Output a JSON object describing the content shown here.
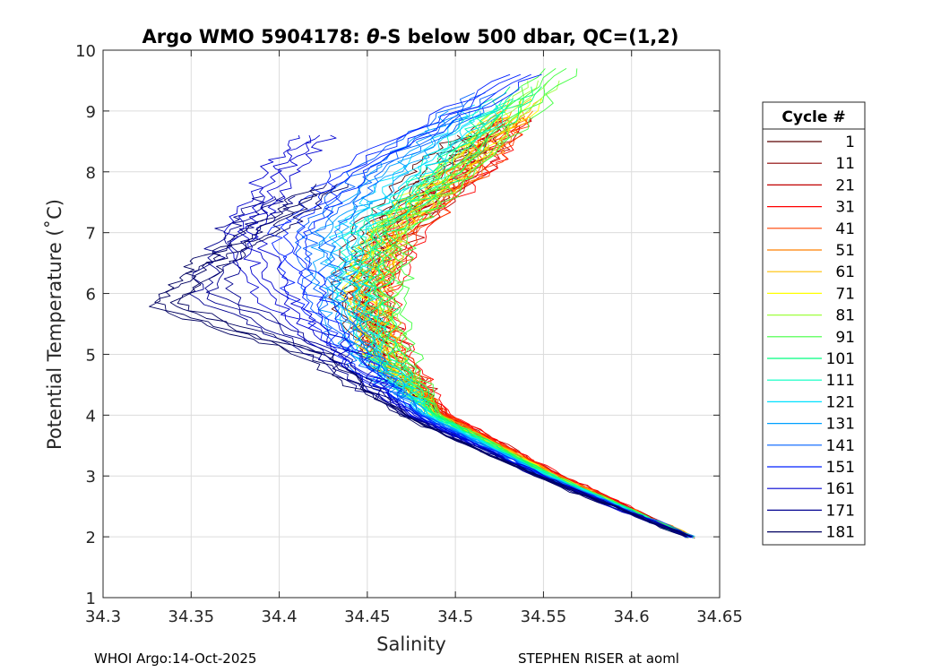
{
  "chart_data": {
    "type": "line",
    "title_prefix": "Argo WMO 5904178: ",
    "title_symbol": "θ",
    "title_suffix": "-S below 500 dbar,  QC=(1,2)",
    "xlabel": "Salinity",
    "ylabel": "Potential Temperature (˚C)",
    "xlim": [
      34.3,
      34.65
    ],
    "ylim": [
      1,
      10
    ],
    "xticks": [
      "34.3",
      "34.35",
      "34.4",
      "34.45",
      "34.5",
      "34.55",
      "34.6",
      "34.65"
    ],
    "yticks": [
      "1",
      "2",
      "3",
      "4",
      "5",
      "6",
      "7",
      "8",
      "9",
      "10"
    ],
    "grid": true,
    "legend_title": "Cycle #",
    "legend_position": "outside-right",
    "series": [
      {
        "name": "1",
        "color": "#5a0000",
        "theta": [
          2.0,
          3.0,
          4.0,
          5.0,
          6.0,
          7.0,
          8.0,
          8.6
        ],
        "salinity": [
          34.633,
          34.555,
          34.49,
          34.455,
          34.44,
          34.45,
          34.485,
          34.51
        ]
      },
      {
        "name": "11",
        "color": "#8b0000",
        "theta": [
          2.0,
          3.0,
          4.0,
          5.0,
          6.0,
          7.0,
          8.0,
          8.8
        ],
        "salinity": [
          34.633,
          34.557,
          34.492,
          34.458,
          34.448,
          34.462,
          34.5,
          34.525
        ]
      },
      {
        "name": "21",
        "color": "#c00000",
        "theta": [
          2.0,
          3.0,
          4.0,
          5.0,
          6.0,
          7.0,
          8.0,
          8.9
        ],
        "salinity": [
          34.633,
          34.56,
          34.495,
          34.462,
          34.452,
          34.47,
          34.51,
          34.533
        ]
      },
      {
        "name": "31",
        "color": "#ff0000",
        "theta": [
          2.0,
          3.0,
          4.0,
          5.0,
          6.0,
          7.0,
          8.0,
          8.9
        ],
        "salinity": [
          34.633,
          34.56,
          34.496,
          34.465,
          34.455,
          34.472,
          34.512,
          34.535
        ]
      },
      {
        "name": "41",
        "color": "#ff4000",
        "theta": [
          2.0,
          3.0,
          4.0,
          5.0,
          6.0,
          7.0,
          8.0,
          8.9
        ],
        "salinity": [
          34.633,
          34.558,
          34.494,
          34.463,
          34.454,
          34.47,
          34.51,
          34.532
        ]
      },
      {
        "name": "51",
        "color": "#ff8000",
        "theta": [
          2.0,
          3.0,
          4.0,
          5.0,
          6.0,
          7.0,
          8.0,
          9.0
        ],
        "salinity": [
          34.633,
          34.557,
          34.492,
          34.46,
          34.45,
          34.465,
          34.505,
          34.535
        ]
      },
      {
        "name": "61",
        "color": "#ffc000",
        "theta": [
          2.0,
          3.0,
          4.0,
          5.0,
          6.0,
          7.0,
          8.0,
          9.2
        ],
        "salinity": [
          34.633,
          34.556,
          34.49,
          34.458,
          34.448,
          34.46,
          34.5,
          34.54
        ]
      },
      {
        "name": "71",
        "color": "#ffff00",
        "theta": [
          2.0,
          3.0,
          4.0,
          5.0,
          6.0,
          7.0,
          8.0,
          9.2
        ],
        "salinity": [
          34.633,
          34.555,
          34.488,
          34.458,
          34.448,
          34.458,
          34.498,
          34.54
        ]
      },
      {
        "name": "81",
        "color": "#9fff3f",
        "theta": [
          2.0,
          3.0,
          4.0,
          5.0,
          6.0,
          7.0,
          8.0,
          9.5
        ],
        "salinity": [
          34.633,
          34.555,
          34.488,
          34.46,
          34.455,
          34.462,
          34.5,
          34.55
        ]
      },
      {
        "name": "91",
        "color": "#40ff40",
        "theta": [
          2.0,
          3.0,
          4.0,
          5.0,
          6.0,
          7.0,
          8.0,
          9.7
        ],
        "salinity": [
          34.633,
          34.555,
          34.49,
          34.468,
          34.462,
          34.465,
          34.505,
          34.56
        ]
      },
      {
        "name": "101",
        "color": "#00ff80",
        "theta": [
          2.0,
          3.0,
          4.0,
          5.0,
          6.0,
          7.0,
          8.0,
          9.4
        ],
        "salinity": [
          34.633,
          34.554,
          34.488,
          34.46,
          34.452,
          34.455,
          34.495,
          34.54
        ]
      },
      {
        "name": "111",
        "color": "#00ffc0",
        "theta": [
          2.0,
          3.0,
          4.0,
          5.0,
          6.0,
          7.0,
          8.0,
          9.2
        ],
        "salinity": [
          34.633,
          34.553,
          34.486,
          34.455,
          34.445,
          34.448,
          34.485,
          34.53
        ]
      },
      {
        "name": "121",
        "color": "#00e0ff",
        "theta": [
          2.0,
          3.0,
          4.0,
          5.0,
          6.0,
          7.0,
          8.0,
          9.1
        ],
        "salinity": [
          34.633,
          34.552,
          34.484,
          34.452,
          34.44,
          34.44,
          34.475,
          34.52
        ]
      },
      {
        "name": "131",
        "color": "#00a0ff",
        "theta": [
          2.0,
          3.0,
          4.0,
          5.0,
          6.0,
          7.0,
          8.0,
          9.0
        ],
        "salinity": [
          34.633,
          34.551,
          34.482,
          34.448,
          34.432,
          34.43,
          34.462,
          34.505
        ]
      },
      {
        "name": "141",
        "color": "#0060ff",
        "theta": [
          2.0,
          3.0,
          4.0,
          5.0,
          6.0,
          7.0,
          8.0,
          9.3
        ],
        "salinity": [
          34.633,
          34.55,
          34.48,
          34.445,
          34.425,
          34.42,
          34.45,
          34.52
        ]
      },
      {
        "name": "151",
        "color": "#0020ff",
        "theta": [
          2.0,
          3.0,
          4.0,
          5.0,
          6.0,
          7.0,
          8.0,
          9.6
        ],
        "salinity": [
          34.633,
          34.549,
          34.478,
          34.44,
          34.415,
          34.405,
          34.44,
          34.54
        ]
      },
      {
        "name": "161",
        "color": "#0000d0",
        "theta": [
          2.0,
          3.0,
          4.0,
          5.0,
          6.0,
          7.0,
          8.0,
          8.6
        ],
        "salinity": [
          34.633,
          34.548,
          34.475,
          34.435,
          34.395,
          34.38,
          34.4,
          34.42
        ]
      },
      {
        "name": "171",
        "color": "#000090",
        "theta": [
          2.0,
          3.0,
          4.0,
          5.0,
          6.0,
          7.0,
          7.6
        ],
        "salinity": [
          34.633,
          34.547,
          34.472,
          34.425,
          34.36,
          34.375,
          34.4
        ]
      },
      {
        "name": "181",
        "color": "#000060",
        "theta": [
          2.0,
          3.0,
          4.0,
          5.0,
          5.8,
          6.5,
          7.0,
          7.8
        ],
        "salinity": [
          34.633,
          34.546,
          34.47,
          34.42,
          34.335,
          34.36,
          34.39,
          34.43
        ]
      }
    ]
  },
  "footer": {
    "left": "WHOI Argo:14-Oct-2025",
    "right": "STEPHEN RISER at aoml"
  }
}
